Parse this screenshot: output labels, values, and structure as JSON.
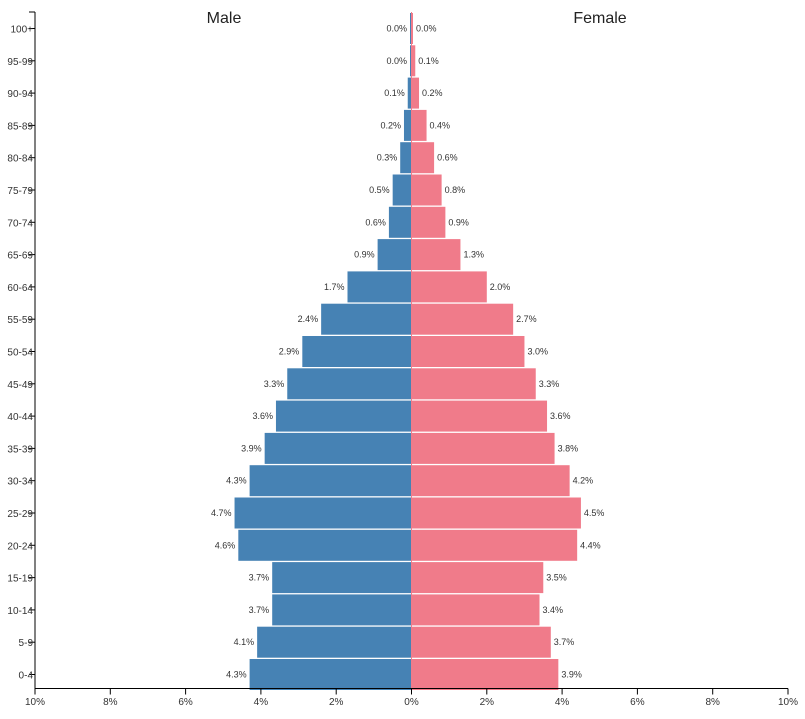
{
  "chart_data": {
    "type": "bar",
    "orientation": "horizontal-population-pyramid",
    "categories": [
      "0-4",
      "5-9",
      "10-14",
      "15-19",
      "20-24",
      "25-29",
      "30-34",
      "35-39",
      "40-44",
      "45-49",
      "50-54",
      "55-59",
      "60-64",
      "65-69",
      "70-74",
      "75-79",
      "80-84",
      "85-89",
      "90-94",
      "95-99",
      "100+"
    ],
    "series": [
      {
        "name": "Male",
        "color": "#4682b4",
        "values": [
          4.3,
          4.1,
          3.7,
          3.7,
          4.6,
          4.7,
          4.3,
          3.9,
          3.6,
          3.3,
          2.9,
          2.4,
          1.7,
          0.9,
          0.6,
          0.5,
          0.3,
          0.2,
          0.1,
          0.0,
          0.0
        ],
        "labels": [
          "4.3%",
          "4.1%",
          "3.7%",
          "3.7%",
          "4.6%",
          "4.7%",
          "4.3%",
          "3.9%",
          "3.6%",
          "3.3%",
          "2.9%",
          "2.4%",
          "1.7%",
          "0.9%",
          "0.6%",
          "0.5%",
          "0.3%",
          "0.2%",
          "0.1%",
          "0.0%",
          "0.0%"
        ]
      },
      {
        "name": "Female",
        "color": "#f07b8a",
        "values": [
          3.9,
          3.7,
          3.4,
          3.5,
          4.4,
          4.5,
          4.2,
          3.8,
          3.6,
          3.3,
          3.0,
          2.7,
          2.0,
          1.3,
          0.9,
          0.8,
          0.6,
          0.4,
          0.2,
          0.1,
          0.0
        ],
        "labels": [
          "3.9%",
          "3.7%",
          "3.4%",
          "3.5%",
          "4.4%",
          "4.5%",
          "4.2%",
          "3.8%",
          "3.6%",
          "3.3%",
          "3.0%",
          "2.7%",
          "2.0%",
          "1.3%",
          "0.9%",
          "0.8%",
          "0.6%",
          "0.4%",
          "0.2%",
          "0.1%",
          "0.0%"
        ]
      }
    ],
    "x_ticks": [
      "10%",
      "8%",
      "6%",
      "4%",
      "2%",
      "0%",
      "2%",
      "4%",
      "6%",
      "8%",
      "10%"
    ],
    "x_range": [
      -10,
      10
    ],
    "grid": false
  }
}
